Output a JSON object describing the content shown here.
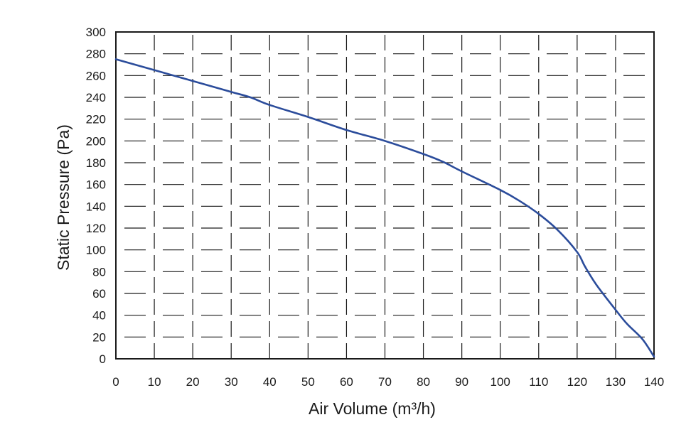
{
  "chart_data": {
    "type": "line",
    "xlabel": "Air Volume (m³/h)",
    "ylabel": "Static Pressure (Pa)",
    "xlim": [
      0,
      140
    ],
    "ylim": [
      0,
      300
    ],
    "x_ticks": [
      0,
      10,
      20,
      30,
      40,
      50,
      60,
      70,
      80,
      90,
      100,
      110,
      120,
      130,
      140
    ],
    "y_ticks": [
      0,
      20,
      40,
      60,
      80,
      100,
      120,
      140,
      160,
      180,
      200,
      220,
      240,
      260,
      280,
      300
    ],
    "grid": true,
    "colors": {
      "series": "#2b4c9b",
      "axis": "#1a1a1a",
      "grid": "#1a1a1a"
    },
    "series": [
      {
        "x": [
          0,
          10,
          20,
          30,
          35,
          40,
          50,
          60,
          70,
          80,
          85,
          90,
          100,
          105,
          110,
          115,
          120,
          122,
          125,
          130,
          133,
          137,
          140
        ],
        "values": [
          275,
          265,
          255,
          245,
          240,
          233,
          222,
          210,
          200,
          188,
          181,
          172,
          155,
          145,
          133,
          118,
          98,
          85,
          68,
          45,
          32,
          18,
          2
        ]
      }
    ]
  }
}
